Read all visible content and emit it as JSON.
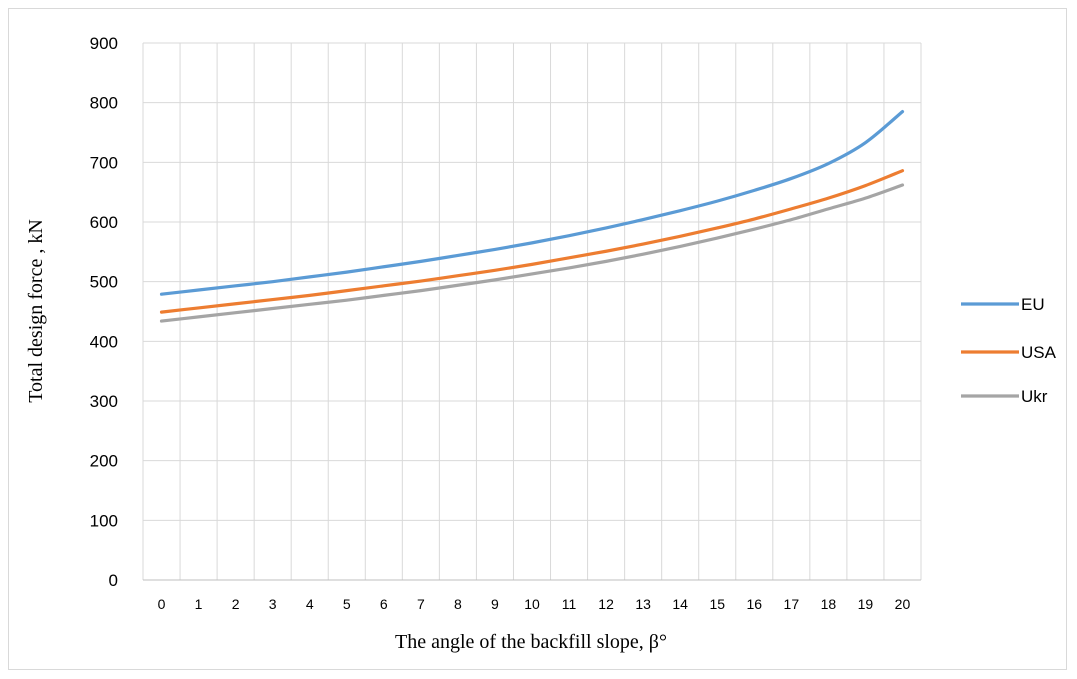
{
  "chart_data": {
    "type": "line",
    "xlabel": "The angle of the backfill slope, β°",
    "ylabel": "Total design force , kN",
    "categories": [
      "0",
      "1",
      "2",
      "3",
      "4",
      "5",
      "6",
      "7",
      "8",
      "9",
      "10",
      "11",
      "12",
      "13",
      "14",
      "15",
      "16",
      "17",
      "18",
      "19",
      "20"
    ],
    "ylim": [
      0,
      900
    ],
    "yticks": [
      0,
      100,
      200,
      300,
      400,
      500,
      600,
      700,
      800,
      900
    ],
    "grid": true,
    "legend_position": "right",
    "series": [
      {
        "name": "EU",
        "color": "#5B9BD5",
        "values": [
          479,
          486,
          493,
          500,
          508,
          516,
          525,
          534,
          544,
          554,
          565,
          577,
          590,
          604,
          619,
          635,
          653,
          673,
          698,
          733,
          785
        ]
      },
      {
        "name": "USA",
        "color": "#ED7D31",
        "values": [
          449,
          456,
          463,
          470,
          477,
          485,
          493,
          501,
          510,
          519,
          529,
          540,
          551,
          563,
          576,
          590,
          605,
          622,
          640,
          661,
          686
        ]
      },
      {
        "name": "Ukr",
        "color": "#A5A5A5",
        "values": [
          434,
          441,
          448,
          455,
          462,
          469,
          477,
          485,
          494,
          503,
          513,
          523,
          534,
          546,
          559,
          573,
          588,
          604,
          622,
          640,
          662
        ]
      }
    ]
  }
}
